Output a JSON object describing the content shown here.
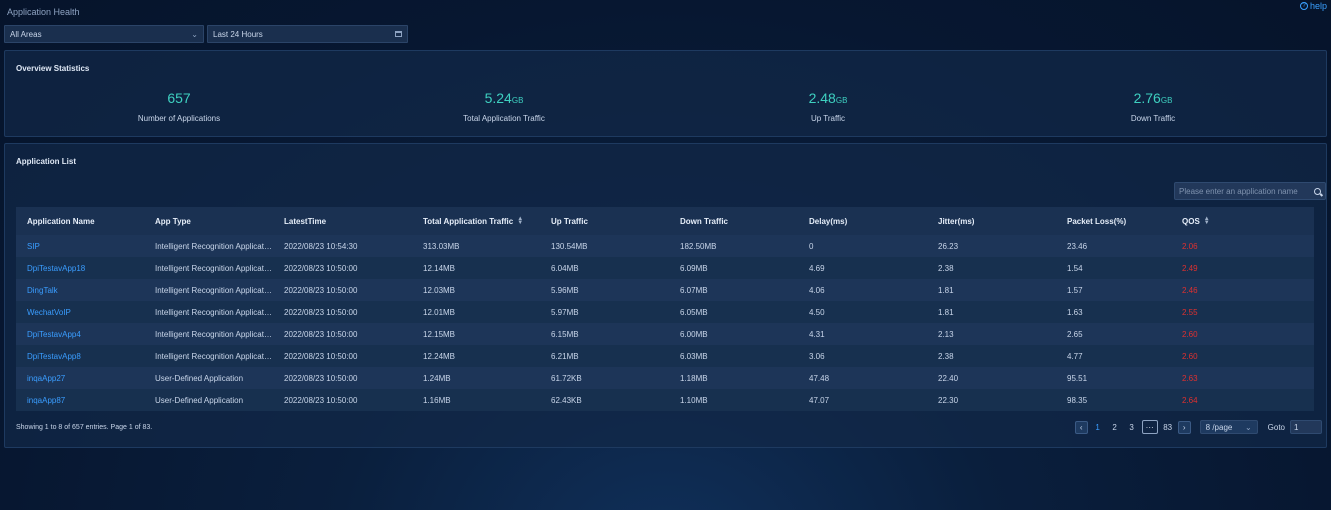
{
  "page": {
    "title": "Application Health",
    "help_label": "help"
  },
  "filters": {
    "area": "All Areas",
    "time": "Last 24 Hours"
  },
  "overview": {
    "title": "Overview Statistics",
    "stats": [
      {
        "value": "657",
        "unit": "",
        "label": "Number of Applications"
      },
      {
        "value": "5.24",
        "unit": "GB",
        "label": "Total Application Traffic"
      },
      {
        "value": "2.48",
        "unit": "GB",
        "label": "Up Traffic"
      },
      {
        "value": "2.76",
        "unit": "GB",
        "label": "Down Traffic"
      }
    ]
  },
  "app_list": {
    "title": "Application List",
    "search_placeholder": "Please enter an application name",
    "columns": [
      "Application Name",
      "App Type",
      "LatestTime",
      "Total Application Traffic",
      "Up Traffic",
      "Down Traffic",
      "Delay(ms)",
      "Jitter(ms)",
      "Packet Loss(%)",
      "QOS"
    ],
    "rows": [
      [
        "SIP",
        "Intelligent Recognition Application",
        "2022/08/23 10:54:30",
        "313.03MB",
        "130.54MB",
        "182.50MB",
        "0",
        "26.23",
        "23.46",
        "2.06"
      ],
      [
        "DpiTestavApp18",
        "Intelligent Recognition Application",
        "2022/08/23 10:50:00",
        "12.14MB",
        "6.04MB",
        "6.09MB",
        "4.69",
        "2.38",
        "1.54",
        "2.49"
      ],
      [
        "DingTalk",
        "Intelligent Recognition Application",
        "2022/08/23 10:50:00",
        "12.03MB",
        "5.96MB",
        "6.07MB",
        "4.06",
        "1.81",
        "1.57",
        "2.46"
      ],
      [
        "WechatVoIP",
        "Intelligent Recognition Application",
        "2022/08/23 10:50:00",
        "12.01MB",
        "5.97MB",
        "6.05MB",
        "4.50",
        "1.81",
        "1.63",
        "2.55"
      ],
      [
        "DpiTestavApp4",
        "Intelligent Recognition Application",
        "2022/08/23 10:50:00",
        "12.15MB",
        "6.15MB",
        "6.00MB",
        "4.31",
        "2.13",
        "2.65",
        "2.60"
      ],
      [
        "DpiTestavApp8",
        "Intelligent Recognition Application",
        "2022/08/23 10:50:00",
        "12.24MB",
        "6.21MB",
        "6.03MB",
        "3.06",
        "2.38",
        "4.77",
        "2.60"
      ],
      [
        "inqaApp27",
        "User-Defined Application",
        "2022/08/23 10:50:00",
        "1.24MB",
        "61.72KB",
        "1.18MB",
        "47.48",
        "22.40",
        "95.51",
        "2.63"
      ],
      [
        "inqaApp87",
        "User-Defined Application",
        "2022/08/23 10:50:00",
        "1.16MB",
        "62.43KB",
        "1.10MB",
        "47.07",
        "22.30",
        "98.35",
        "2.64"
      ]
    ],
    "footer": "Showing 1 to 8 of 657 entries.  Page 1 of 83.",
    "pagination": {
      "pages": [
        "1",
        "2",
        "3"
      ],
      "ellipsis": "···",
      "last": "83",
      "per_page": "8 /page",
      "goto_label": "Goto",
      "goto_value": "1"
    }
  },
  "colors": {
    "accent": "#3a9dff",
    "stat_value": "#3ed0c0",
    "qos": "#e0302f"
  }
}
